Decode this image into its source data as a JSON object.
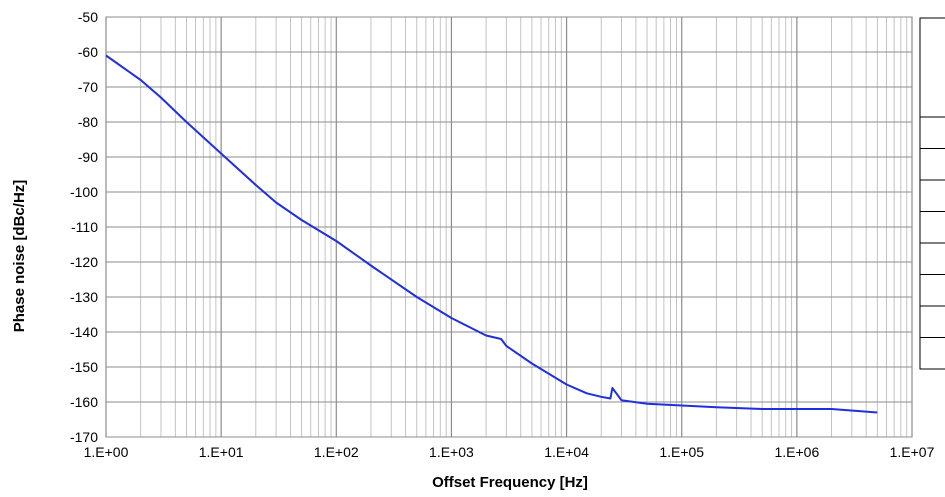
{
  "chart_data": {
    "type": "line",
    "title": "",
    "xlabel": "Offset Frequency  [Hz]",
    "ylabel": "Phase noise  [dBc/Hz]",
    "x_scale": "log",
    "xlim": [
      1,
      10000000
    ],
    "ylim": [
      -170,
      -50
    ],
    "grid": true,
    "x_tick_labels": [
      "1.E+00",
      "1.E+01",
      "1.E+02",
      "1.E+03",
      "1.E+04",
      "1.E+05",
      "1.E+06",
      "1.E+07"
    ],
    "y_tick_labels": [
      "-50",
      "-60",
      "-70",
      "-80",
      "-90",
      "-100",
      "-110",
      "-120",
      "-130",
      "-140",
      "-150",
      "-160",
      "-170"
    ],
    "line_color": "#1f2fe0",
    "series": [
      {
        "x": [
          1,
          2,
          3,
          5,
          10,
          20,
          30,
          50,
          100,
          200,
          500,
          1000,
          2000,
          2700,
          3000,
          5000,
          10000,
          15000,
          20000,
          24000,
          25000,
          30000,
          50000,
          100000,
          200000,
          500000,
          1000000,
          2000000,
          5000000
        ],
        "y": [
          -61,
          -68,
          -73,
          -80,
          -89,
          -98,
          -103,
          -108,
          -114,
          -121,
          -130,
          -136,
          -141,
          -142,
          -144,
          -149,
          -155,
          -157.5,
          -158.5,
          -159,
          -156,
          -159.5,
          -160.5,
          -161,
          -161.5,
          -162,
          -162,
          -162,
          -163
        ]
      }
    ],
    "legend_box_rows": 9
  }
}
